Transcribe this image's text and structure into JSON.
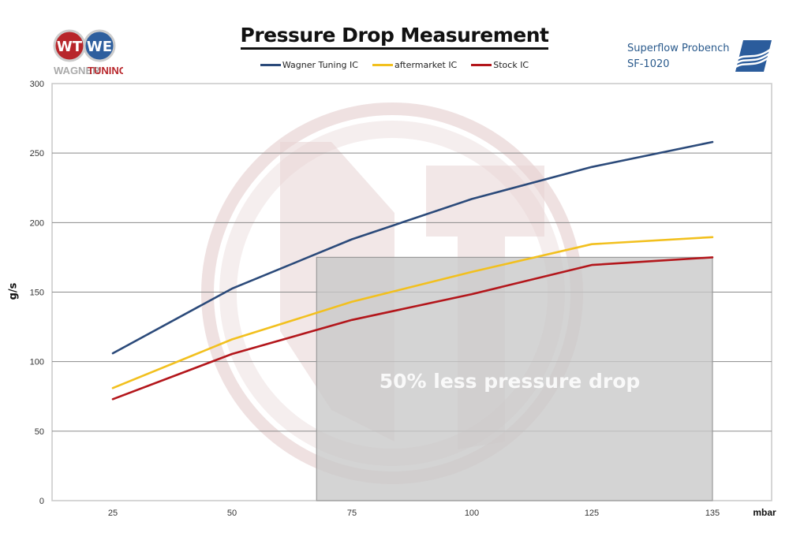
{
  "header": {
    "title": "Pressure Drop Measurement",
    "brand_left": "WAGNER TUNING",
    "brand_left_part1": "WAGNER",
    "brand_left_part2": "TUNING",
    "brand_right_line1": "Superflow Probench",
    "brand_right_line2": "SF-1020"
  },
  "colors": {
    "wagner": "#2b4a7a",
    "aftermarket": "#f2c01e",
    "stock": "#b3161b",
    "highlight_box": "#c8c8c8",
    "watermark": "#e8d4d4"
  },
  "chart_data": {
    "type": "line",
    "title": "Pressure Drop Measurement",
    "xlabel": "mbar",
    "ylabel": "g/s",
    "categories": [
      "25",
      "50",
      "75",
      "100",
      "125",
      "135"
    ],
    "ylim": [
      0,
      300
    ],
    "yticks": [
      0,
      50,
      100,
      150,
      200,
      250,
      300
    ],
    "grid": true,
    "legend_position": "top-center",
    "series": [
      {
        "name": "Wagner Tuning IC",
        "color": "#2b4a7a",
        "values": [
          106,
          152.5,
          188,
          217,
          240,
          258
        ]
      },
      {
        "name": "aftermarket IC",
        "color": "#f2c01e",
        "values": [
          81,
          116,
          143,
          164.5,
          184.5,
          189.5
        ]
      },
      {
        "name": "Stock IC",
        "color": "#b3161b",
        "values": [
          73,
          105.5,
          130,
          148.5,
          169.5,
          175
        ]
      }
    ],
    "annotation": {
      "text": "50% less pressure drop",
      "box_from_category_index": 1.64,
      "box_to_category_index": 5,
      "box_y_from": 0,
      "box_y_to": 175
    }
  }
}
